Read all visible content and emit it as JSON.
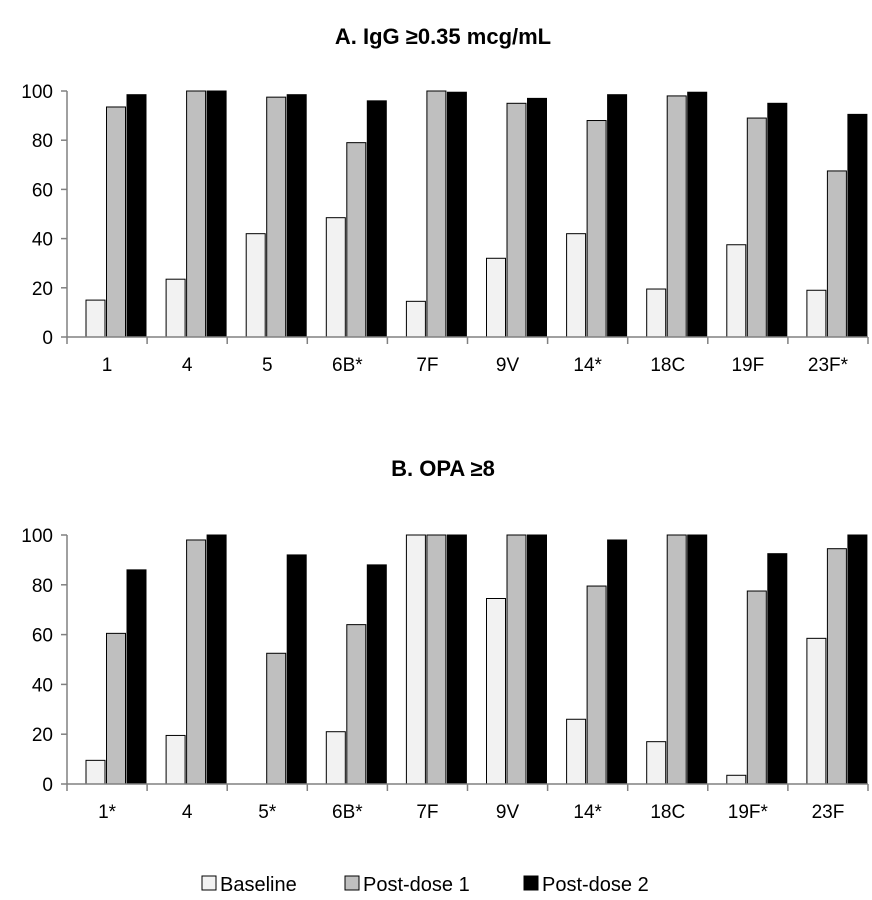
{
  "colors": {
    "Baseline": "#f2f2f2",
    "Post-dose 1": "#bfbfbf",
    "Post-dose 2": "#000000",
    "axis": "#808080"
  },
  "legend": {
    "placement": "bottom-center"
  },
  "chart_data": [
    {
      "type": "bar",
      "title": "A. IgG ≥0.35 mcg/mL",
      "xlabel": "",
      "ylabel": "",
      "ylim": [
        0,
        100
      ],
      "yticks": [
        0,
        20,
        40,
        60,
        80,
        100
      ],
      "grid": false,
      "categories": [
        "1",
        "4",
        "5",
        "6B*",
        "7F",
        "9V",
        "14*",
        "18C",
        "19F",
        "23F*"
      ],
      "series": [
        {
          "name": "Baseline",
          "values": [
            15,
            23.5,
            42,
            48.5,
            14.5,
            32,
            42,
            19.5,
            37.5,
            19
          ]
        },
        {
          "name": "Post-dose 1",
          "values": [
            93.5,
            100,
            97.5,
            79,
            100,
            95,
            88,
            98,
            89,
            67.5
          ]
        },
        {
          "name": "Post-dose 2",
          "values": [
            98.5,
            100,
            98.5,
            96,
            99.5,
            97,
            98.5,
            99.5,
            95,
            90.5
          ]
        }
      ]
    },
    {
      "type": "bar",
      "title": "B. OPA ≥8",
      "xlabel": "",
      "ylabel": "",
      "ylim": [
        0,
        100
      ],
      "yticks": [
        0,
        20,
        40,
        60,
        80,
        100
      ],
      "grid": false,
      "categories": [
        "1*",
        "4",
        "5*",
        "6B*",
        "7F",
        "9V",
        "14*",
        "18C",
        "19F*",
        "23F"
      ],
      "series": [
        {
          "name": "Baseline",
          "values": [
            9.5,
            19.5,
            0,
            21,
            100,
            74.5,
            26,
            17,
            3.5,
            58.5
          ]
        },
        {
          "name": "Post-dose 1",
          "values": [
            60.5,
            98,
            52.5,
            64,
            100,
            100,
            79.5,
            100,
            77.5,
            94.5
          ]
        },
        {
          "name": "Post-dose 2",
          "values": [
            86,
            100,
            92,
            88,
            100,
            100,
            98,
            100,
            92.5,
            100
          ]
        }
      ]
    }
  ]
}
